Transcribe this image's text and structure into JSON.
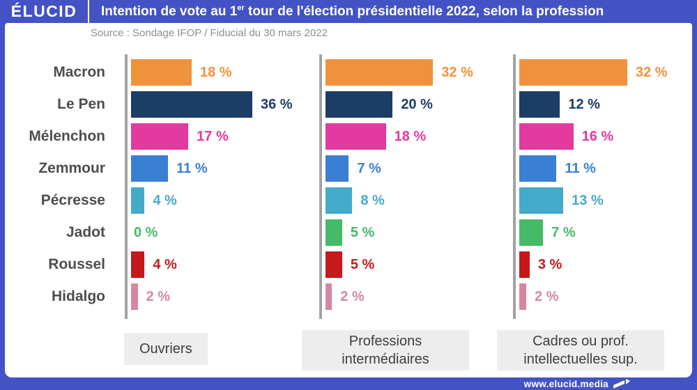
{
  "header": {
    "logo": "ÉLUCID",
    "title": {
      "prefix": "Intention de vote au 1",
      "sup": "er",
      "suffix": " tour de l'élection présidentielle 2022, selon la profession"
    }
  },
  "source": "Source : Sondage IFOP / Fiducial du 30 mars 2022",
  "footer": {
    "url": "www.elucid.media"
  },
  "colors": {
    "frame_blue": "#4353c6",
    "axis_gray": "#a2a2a2",
    "candidate_label_gray": "#4d4d4d",
    "source_gray": "#8e8e8e",
    "group_box_bg": "#ededed",
    "group_box_text": "#3e3e3e"
  },
  "chart_data": {
    "type": "bar",
    "orientation": "horizontal",
    "title": "Intention de vote au 1er tour de l'élection présidentielle 2022, selon la profession",
    "subtitle": "Source : Sondage IFOP / Fiducial du 30 mars 2022",
    "unit": "%",
    "value_suffix": " %",
    "grid": false,
    "legend": "none",
    "xlim": [
      0,
      50
    ],
    "categories": [
      "Macron",
      "Le Pen",
      "Mélenchon",
      "Zemmour",
      "Pécresse",
      "Jadot",
      "Roussel",
      "Hidalgo"
    ],
    "bar_colors": [
      "#F0923C",
      "#1C3D66",
      "#E23A9E",
      "#3B7FD4",
      "#44AACA",
      "#45BA68",
      "#C6191C",
      "#D6879F"
    ],
    "series": [
      {
        "name": "Ouvriers",
        "values": [
          18,
          36,
          17,
          11,
          4,
          0,
          4,
          2
        ]
      },
      {
        "name": "Professions intermédiaires",
        "values": [
          32,
          20,
          18,
          7,
          8,
          5,
          5,
          2
        ]
      },
      {
        "name": "Cadres ou prof. intellectuelles sup.",
        "values": [
          32,
          12,
          16,
          11,
          13,
          7,
          3,
          2
        ]
      }
    ]
  }
}
